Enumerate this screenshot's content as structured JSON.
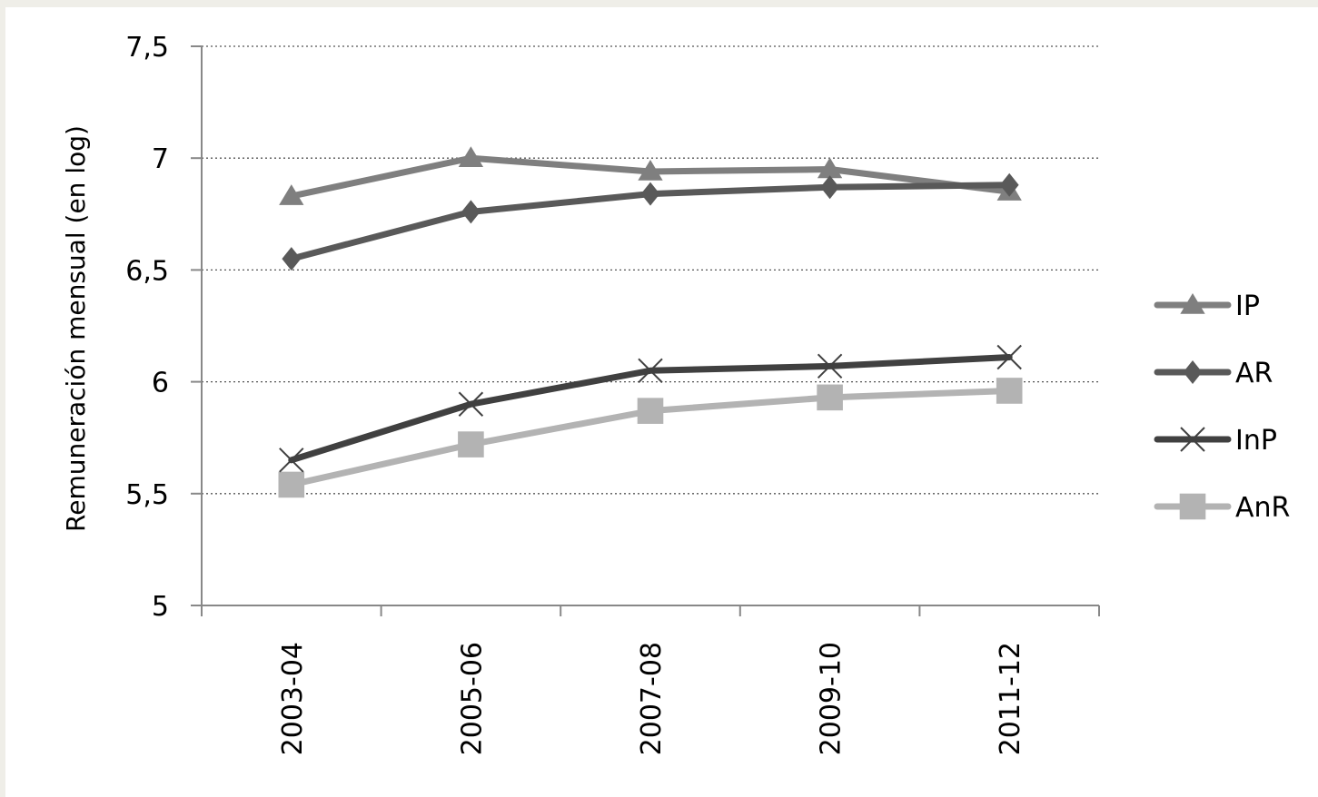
{
  "chart_data": {
    "type": "line",
    "ylabel": "Remuneración mensual (en log)",
    "xlabel": "",
    "title": "",
    "categories": [
      "2003-04",
      "2005-06",
      "2007-08",
      "2009-10",
      "2011-12"
    ],
    "ylim": [
      5,
      7.5
    ],
    "yticks": [
      5,
      5.5,
      6,
      6.5,
      7,
      7.5
    ],
    "ytick_labels": [
      "5",
      "5,5",
      "6",
      "6,5",
      "7",
      "7,5"
    ],
    "grid": "horizontal dotted",
    "legend_position": "right",
    "series": [
      {
        "name": "IP",
        "values": [
          6.83,
          7.0,
          6.94,
          6.95,
          6.85
        ],
        "color": "#7f7f7f",
        "marker": "triangle"
      },
      {
        "name": "AR",
        "values": [
          6.55,
          6.76,
          6.84,
          6.87,
          6.88
        ],
        "color": "#595959",
        "marker": "diamond"
      },
      {
        "name": "InP",
        "values": [
          5.65,
          5.9,
          6.05,
          6.07,
          6.11
        ],
        "color": "#404040",
        "marker": "x"
      },
      {
        "name": "AnR",
        "values": [
          5.54,
          5.72,
          5.87,
          5.93,
          5.96
        ],
        "color": "#b3b3b3",
        "marker": "square"
      }
    ]
  }
}
